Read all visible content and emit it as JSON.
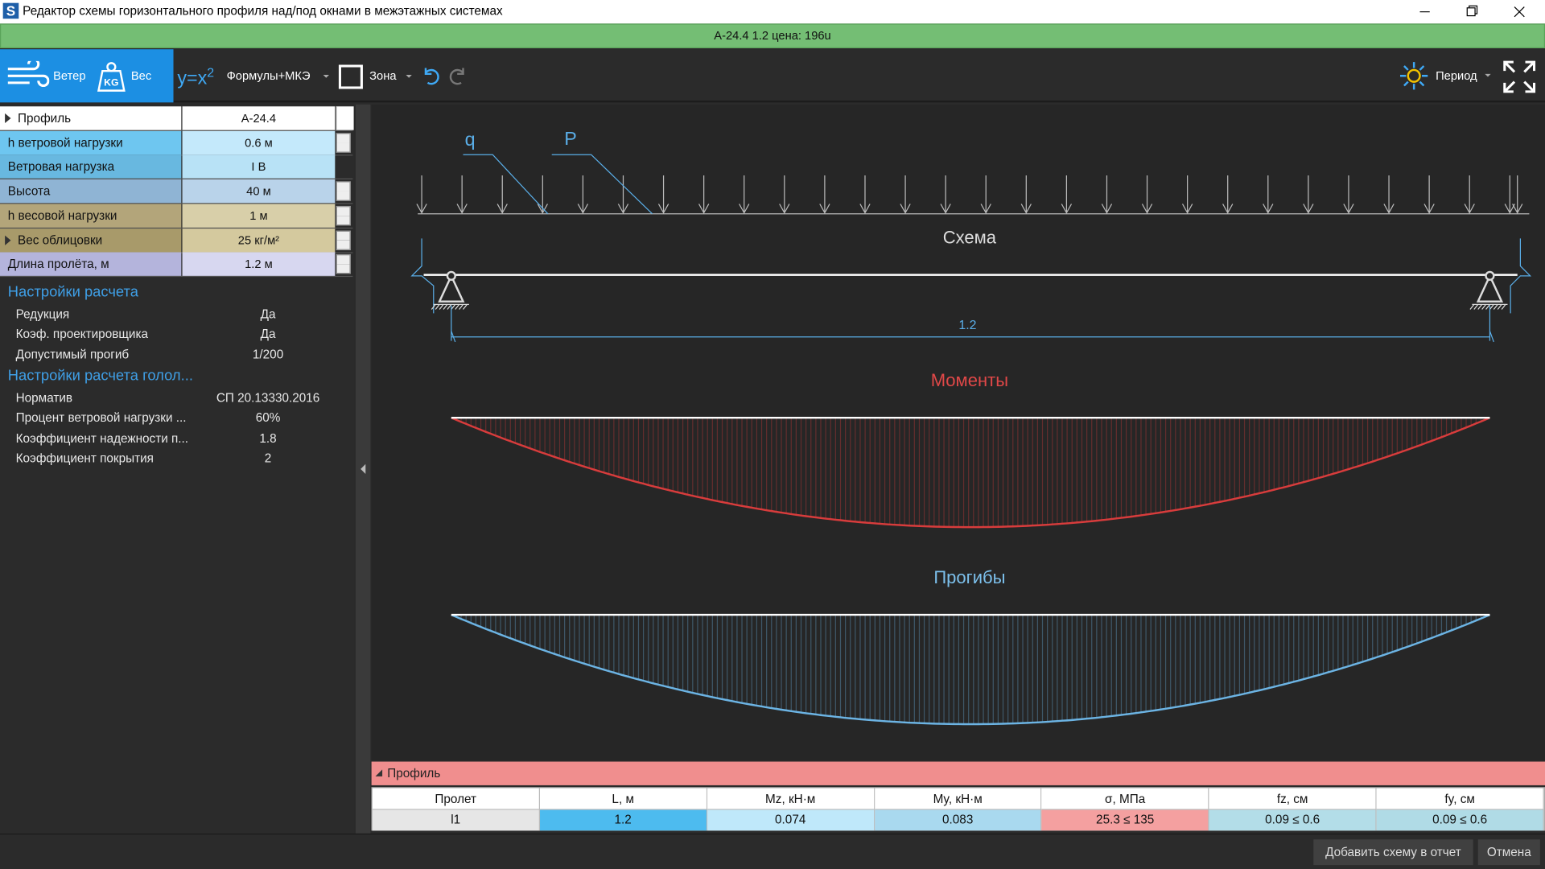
{
  "window": {
    "title": "Редактор схемы горизонтального профиля над/под окнами в межэтажных системах",
    "icon": "S"
  },
  "status": "А-24.4 1.2 цена: 196u",
  "toolbar": {
    "wind": "Ветер",
    "weight": "Вес",
    "weight_icon": "KG",
    "formula_base": "y=x",
    "formula_power": "2",
    "formula": "Формулы+МКЭ",
    "zone": "Зона",
    "period": "Период"
  },
  "properties": [
    {
      "label": "Профиль",
      "value": "А-24.4"
    },
    {
      "label": "h ветровой нагрузки",
      "value": "0.6 м"
    },
    {
      "label": "Ветровая нагрузка",
      "value": "I В"
    },
    {
      "label": "Высота",
      "value": "40 м"
    },
    {
      "label": "h весовой нагрузки",
      "value": "1 м"
    },
    {
      "label": "Вес облицовки",
      "value": "25 кг/м²"
    },
    {
      "label": "Длина пролёта, м",
      "value": "1.2 м"
    }
  ],
  "settings": [
    {
      "title": "Настройки расчета",
      "items": [
        [
          "Редукция",
          "Да"
        ],
        [
          "Коэф. проектировщика",
          "Да"
        ],
        [
          "Допустимый прогиб",
          "1/200"
        ]
      ]
    },
    {
      "title": "Настройки расчета голол...",
      "items": [
        [
          "Норматив",
          "СП 20.13330.2016"
        ],
        [
          "Процент ветровой нагрузки ...",
          "60%"
        ],
        [
          "Коэффициент надежности п...",
          "1.8"
        ],
        [
          "Коэффициент покрытия",
          "2"
        ]
      ]
    }
  ],
  "scheme": {
    "load_q": "q",
    "load_p": "P",
    "title": "Схема",
    "span": "1.2",
    "moments": "Моменты",
    "deflections": "Прогибы"
  },
  "results": {
    "title": "Профиль",
    "columns": [
      "Пролет",
      "L, м",
      "Mz, кН·м",
      "My, кН·м",
      "σ, МПа",
      "fz, см",
      "fy, см"
    ],
    "rows": [
      [
        "l1",
        "1.2",
        "0.074",
        "0.083",
        "25.3 ≤ 135",
        "0.09 ≤ 0.6",
        "0.09 ≤ 0.6"
      ]
    ]
  },
  "buttons": [
    "Добавить схему в отчет",
    "Отмена"
  ]
}
